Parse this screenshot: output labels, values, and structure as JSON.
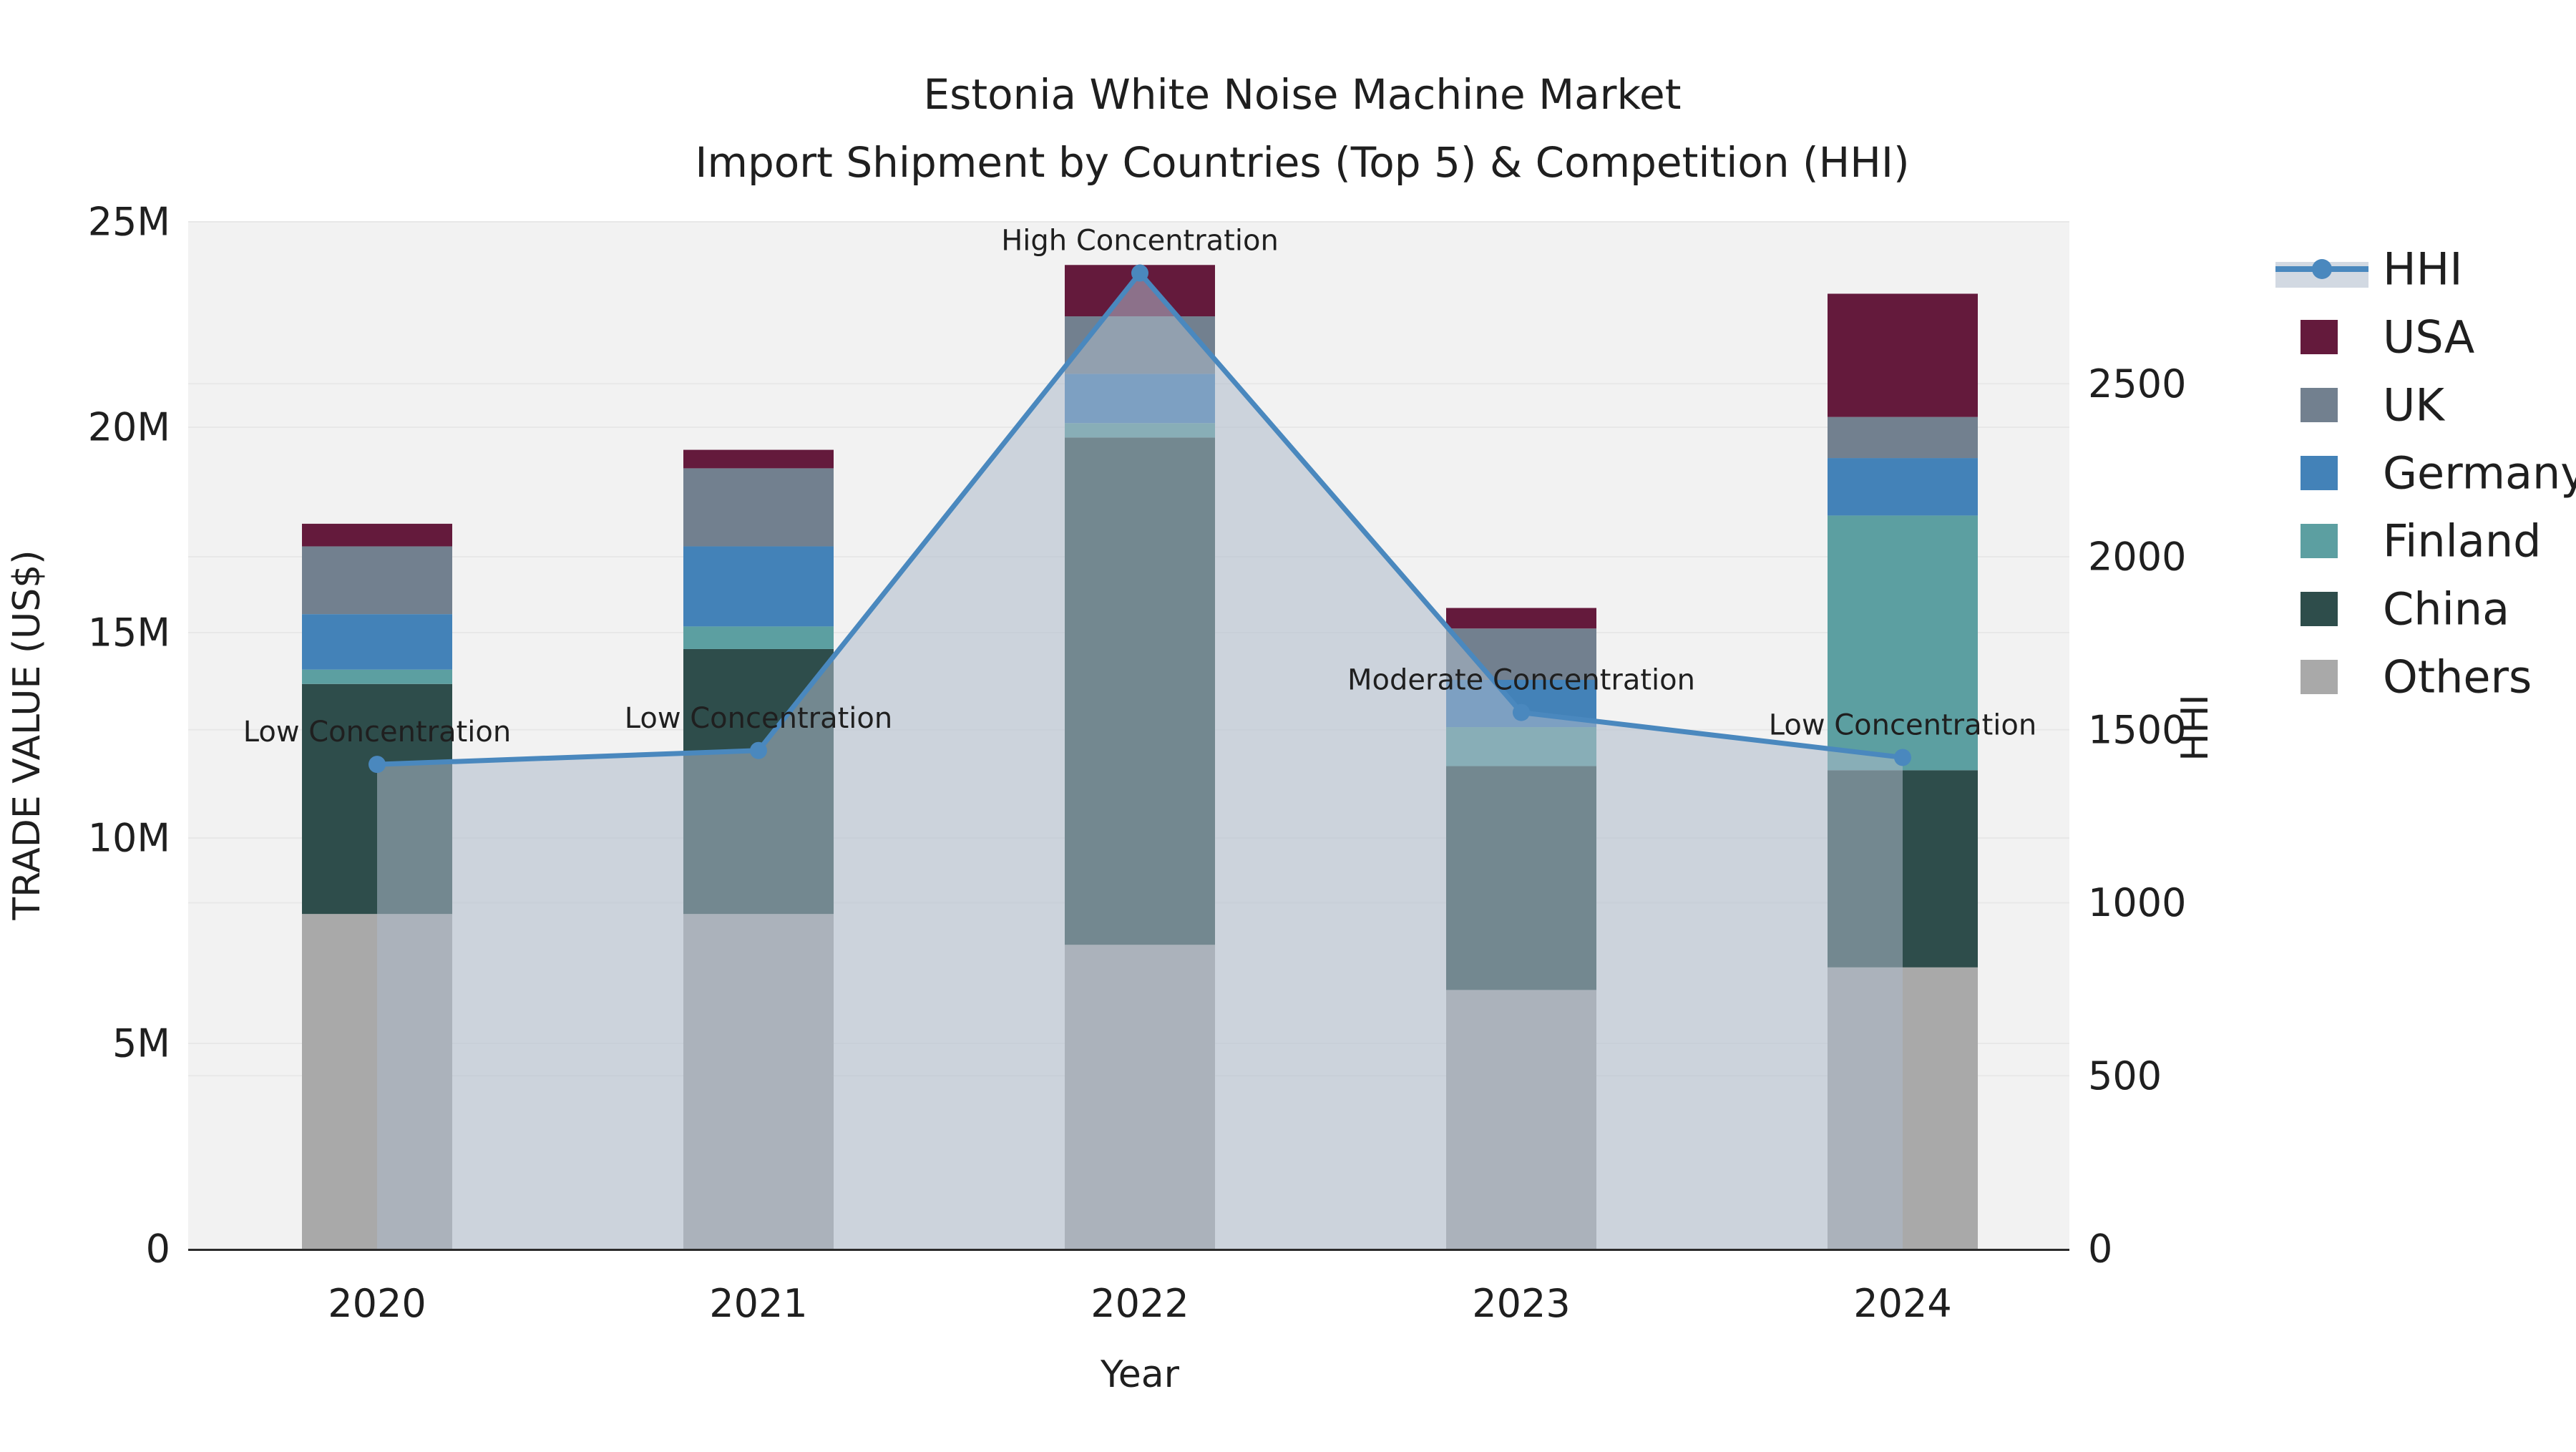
{
  "title": {
    "line1": "Estonia White Noise Machine Market",
    "line2": "Import Shipment by Countries (Top 5) & Competition (HHI)"
  },
  "colors": {
    "plot_bg": "#F2F2F2",
    "grid": "#E8E8E8",
    "spine": "#2B2B2B",
    "text": "#1f1f1f",
    "hhi_line": "#4A88BE",
    "hhi_area": "rgba(173,185,202,0.55)"
  },
  "chart_data": {
    "type": "stacked-bar-with-line-dual-axis",
    "categories": [
      "2020",
      "2021",
      "2022",
      "2023",
      "2024"
    ],
    "bar_unit": "million US$",
    "series": [
      {
        "name": "Others",
        "color": "#A9A9A9",
        "values": [
          8.15,
          8.15,
          7.4,
          6.3,
          6.85
        ]
      },
      {
        "name": "China",
        "color": "#2E4D4B",
        "values": [
          5.6,
          6.45,
          12.35,
          5.45,
          4.8
        ]
      },
      {
        "name": "Finland",
        "color": "#5C9FA1",
        "values": [
          0.35,
          0.55,
          0.35,
          0.95,
          6.2
        ]
      },
      {
        "name": "Germany",
        "color": "#4382B8",
        "values": [
          1.35,
          1.95,
          1.2,
          1.15,
          1.4
        ]
      },
      {
        "name": "UK",
        "color": "#72808F",
        "values": [
          1.65,
          1.9,
          1.4,
          1.25,
          1.0
        ]
      },
      {
        "name": "USA",
        "color": "#641A3C",
        "values": [
          0.55,
          0.45,
          1.25,
          0.5,
          3.0
        ]
      }
    ],
    "line": {
      "name": "HHI",
      "values": [
        1400,
        1440,
        2820,
        1550,
        1420
      ],
      "color": "#4A88BE",
      "area_color": "rgba(173,185,202,0.55)",
      "marker": "circle"
    },
    "annotations": [
      "Low Concentration",
      "Low Concentration",
      "High Concentration",
      "Moderate Concentration",
      "Low Concentration"
    ],
    "xlabel": "Year",
    "ylabel_left": "TRADE VALUE (US$)",
    "ylabel_right": "HHI",
    "yticks_left_labels": [
      "0",
      "5M",
      "10M",
      "15M",
      "20M",
      "25M"
    ],
    "yticks_left_values": [
      0,
      5,
      10,
      15,
      20,
      25
    ],
    "ylim_left_millions": [
      0,
      25
    ],
    "yticks_right_labels": [
      "0",
      "500",
      "1000",
      "1500",
      "2000",
      "2500"
    ],
    "yticks_right_values": [
      0,
      500,
      1000,
      1500,
      2000,
      2500
    ],
    "ylim_right": [
      0,
      2968
    ],
    "grid": "on",
    "legend_position": "right",
    "legend": [
      {
        "label": "HHI",
        "type": "line",
        "color": "#4A88BE"
      },
      {
        "label": "USA",
        "type": "square",
        "color": "#641A3C"
      },
      {
        "label": "UK",
        "type": "square",
        "color": "#72808F"
      },
      {
        "label": "Germany",
        "type": "square",
        "color": "#4382B8"
      },
      {
        "label": "Finland",
        "type": "square",
        "color": "#5C9FA1"
      },
      {
        "label": "China",
        "type": "square",
        "color": "#2E4D4B"
      },
      {
        "label": "Others",
        "type": "square",
        "color": "#A9A9A9"
      }
    ]
  }
}
